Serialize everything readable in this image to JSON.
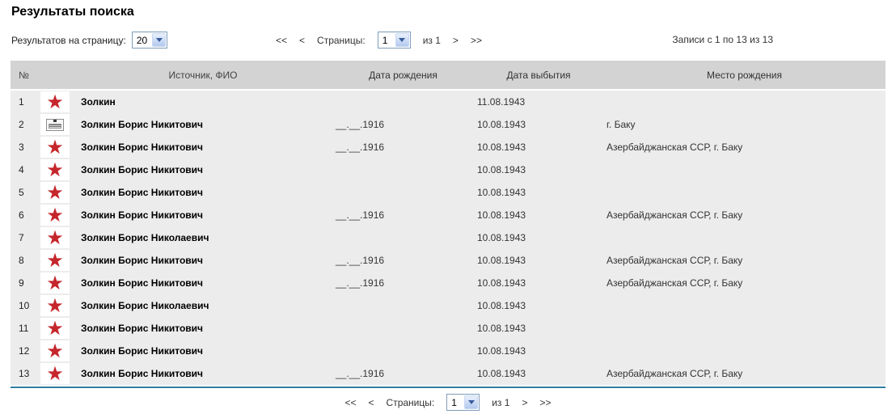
{
  "page": {
    "title": "Результаты поиска"
  },
  "controls": {
    "per_page_label": "Результатов на страницу:",
    "per_page_value": "20",
    "records_info": "Записи с 1 по 13 из 13"
  },
  "pagination": {
    "first": "<<",
    "prev": "<",
    "pages_label": "Страницы:",
    "page_value": "1",
    "of_label": "из 1",
    "next": ">",
    "last": ">>"
  },
  "table": {
    "columns": {
      "num": "№",
      "name": "Источник, ФИО",
      "birth": "Дата рождения",
      "death": "Дата выбытия",
      "place": "Место рождения"
    },
    "icon_names": {
      "star": "memorial-star",
      "card": "card-file"
    },
    "rows": [
      {
        "num": "1",
        "icon": "star",
        "name": "Золкин",
        "birth": "",
        "death": "11.08.1943",
        "place": ""
      },
      {
        "num": "2",
        "icon": "card",
        "name": "Золкин Борис Никитович",
        "birth": "__.__.1916",
        "death": "10.08.1943",
        "place": "г. Баку"
      },
      {
        "num": "3",
        "icon": "star",
        "name": "Золкин Борис Никитович",
        "birth": "__.__.1916",
        "death": "10.08.1943",
        "place": "Азербайджанская ССР, г. Баку"
      },
      {
        "num": "4",
        "icon": "star",
        "name": "Золкин Борис Никитович",
        "birth": "",
        "death": "10.08.1943",
        "place": ""
      },
      {
        "num": "5",
        "icon": "star",
        "name": "Золкин Борис Никитович",
        "birth": "",
        "death": "10.08.1943",
        "place": ""
      },
      {
        "num": "6",
        "icon": "star",
        "name": "Золкин Борис Никитович",
        "birth": "__.__.1916",
        "death": "10.08.1943",
        "place": "Азербайджанская ССР, г. Баку"
      },
      {
        "num": "7",
        "icon": "star",
        "name": "Золкин Борис Николаевич",
        "birth": "",
        "death": "10.08.1943",
        "place": ""
      },
      {
        "num": "8",
        "icon": "star",
        "name": "Золкин Борис Никитович",
        "birth": "__.__.1916",
        "death": "10.08.1943",
        "place": "Азербайджанская ССР, г. Баку"
      },
      {
        "num": "9",
        "icon": "star",
        "name": "Золкин Борис Никитович",
        "birth": "__.__.1916",
        "death": "10.08.1943",
        "place": "Азербайджанская ССР, г. Баку"
      },
      {
        "num": "10",
        "icon": "star",
        "name": "Золкин Борис Николаевич",
        "birth": "",
        "death": "10.08.1943",
        "place": ""
      },
      {
        "num": "11",
        "icon": "star",
        "name": "Золкин Борис Никитович",
        "birth": "",
        "death": "10.08.1943",
        "place": ""
      },
      {
        "num": "12",
        "icon": "star",
        "name": "Золкин Борис Никитович",
        "birth": "",
        "death": "10.08.1943",
        "place": ""
      },
      {
        "num": "13",
        "icon": "star",
        "name": "Золкин Борис Никитович",
        "birth": "__.__.1916",
        "death": "10.08.1943",
        "place": "Азербайджанская ССР, г. Баку"
      }
    ]
  },
  "colors": {
    "header_bg": "#d3d3d3",
    "body_bg": "#ececec",
    "star_red": "#c5262c",
    "divider_blue": "#337d9e",
    "select_border": "#7f9db9"
  }
}
